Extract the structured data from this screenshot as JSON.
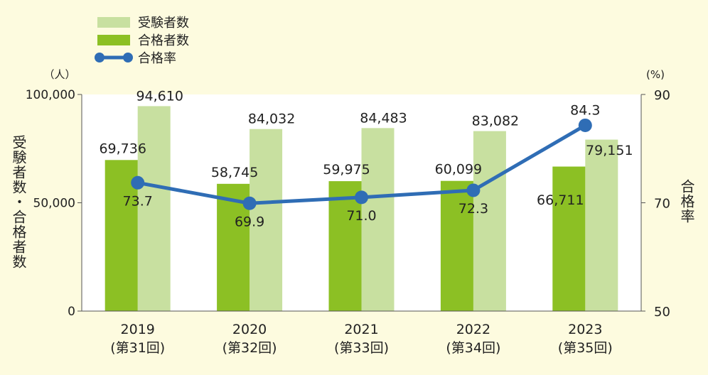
{
  "chart_data": {
    "type": "bar",
    "categories": [
      {
        "year": "2019",
        "round": "(第31回)"
      },
      {
        "year": "2020",
        "round": "(第32回)"
      },
      {
        "year": "2021",
        "round": "(第33回)"
      },
      {
        "year": "2022",
        "round": "(第34回)"
      },
      {
        "year": "2023",
        "round": "(第35回)"
      }
    ],
    "series": [
      {
        "name": "受験者数",
        "type": "bar",
        "axis": "left",
        "color": "#c8e0a0",
        "values": [
          94610,
          84032,
          84483,
          83082,
          79151
        ],
        "labels": [
          "94,610",
          "84,032",
          "84,483",
          "83,082",
          "79,151"
        ]
      },
      {
        "name": "合格者数",
        "type": "bar",
        "axis": "left",
        "color": "#8cc024",
        "values": [
          69736,
          58745,
          59975,
          60099,
          66711
        ],
        "labels": [
          "69,736",
          "58,745",
          "59,975",
          "60,099",
          "66,711"
        ]
      },
      {
        "name": "合格率",
        "type": "line",
        "axis": "right",
        "color": "#2f6db5",
        "values": [
          73.7,
          69.9,
          71.0,
          72.3,
          84.3
        ],
        "labels": [
          "73.7",
          "69.9",
          "71.0",
          "72.3",
          "84.3"
        ]
      }
    ],
    "y_left": {
      "label": "受験者数・合格者数",
      "unit": "（人）",
      "range": [
        0,
        100000
      ],
      "ticks": [
        0,
        50000,
        100000
      ],
      "tick_labels": [
        "0",
        "50,000",
        "100,000"
      ]
    },
    "y_right": {
      "label": "合格率",
      "unit": "(%)",
      "range": [
        50,
        90
      ],
      "ticks": [
        50,
        70,
        90
      ],
      "tick_labels": [
        "50",
        "70",
        "90"
      ]
    },
    "legend": {
      "position": "top-left",
      "items": [
        "受験者数",
        "合格者数",
        "合格率"
      ]
    },
    "plot_background": "#ffffff",
    "page_background": "#fdfbdf",
    "grid": false
  }
}
